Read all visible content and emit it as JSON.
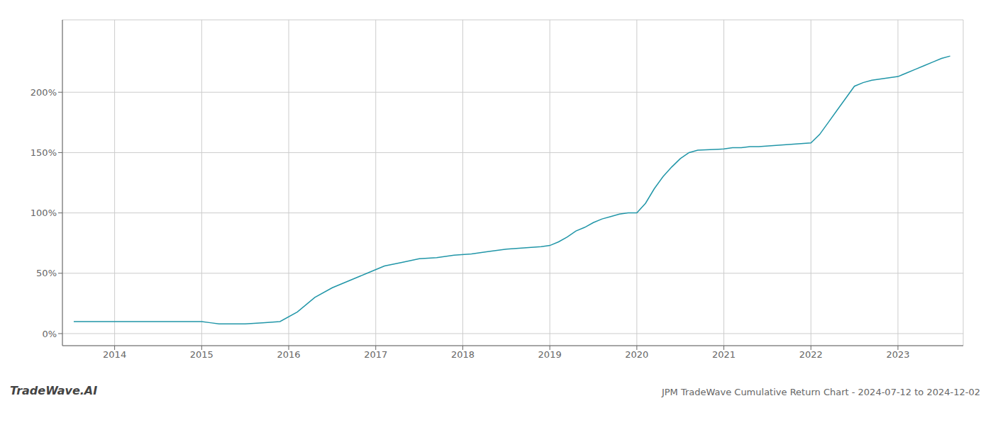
{
  "chart_data": {
    "type": "line",
    "title": "JPM TradeWave Cumulative Return Chart - 2024-07-12 to 2024-12-02",
    "annotations": [
      "TradeWave.AI"
    ],
    "color": "#2196a8",
    "grid": true,
    "x": [
      2013.53,
      2013.7,
      2013.9,
      2014.1,
      2014.3,
      2014.5,
      2014.7,
      2014.9,
      2015.0,
      2015.1,
      2015.2,
      2015.3,
      2015.5,
      2015.7,
      2015.9,
      2016.1,
      2016.3,
      2016.5,
      2016.7,
      2016.9,
      2017.1,
      2017.3,
      2017.5,
      2017.7,
      2017.9,
      2018.1,
      2018.3,
      2018.5,
      2018.7,
      2018.9,
      2019.0,
      2019.1,
      2019.2,
      2019.3,
      2019.4,
      2019.5,
      2019.6,
      2019.7,
      2019.8,
      2019.9,
      2020.0,
      2020.1,
      2020.2,
      2020.3,
      2020.4,
      2020.5,
      2020.6,
      2020.7,
      2021.0,
      2021.1,
      2021.2,
      2021.3,
      2021.4,
      2021.6,
      2021.8,
      2022.0,
      2022.1,
      2022.2,
      2022.3,
      2022.4,
      2022.5,
      2022.6,
      2022.7,
      2022.8,
      2022.9,
      2023.0,
      2023.1,
      2023.2,
      2023.3,
      2023.4,
      2023.5,
      2023.6
    ],
    "values": [
      10,
      10,
      10,
      10,
      10,
      10,
      10,
      10,
      10,
      9,
      8,
      8,
      8,
      9,
      10,
      18,
      30,
      38,
      44,
      50,
      56,
      59,
      62,
      63,
      65,
      66,
      68,
      70,
      71,
      72,
      73,
      76,
      80,
      85,
      88,
      92,
      95,
      97,
      99,
      100,
      100,
      108,
      120,
      130,
      138,
      145,
      150,
      152,
      153,
      154,
      154,
      155,
      155,
      156,
      157,
      158,
      165,
      175,
      185,
      195,
      205,
      208,
      210,
      211,
      212,
      213,
      216,
      219,
      222,
      225,
      228,
      230
    ],
    "xlim": [
      2013.4,
      2023.75
    ],
    "xticks": [
      2014,
      2015,
      2016,
      2017,
      2018,
      2019,
      2020,
      2021,
      2022,
      2023
    ],
    "ylim": [
      -10,
      260
    ],
    "yticks": [
      {
        "value": 0,
        "label": "0%"
      },
      {
        "value": 50,
        "label": "50%"
      },
      {
        "value": 100,
        "label": "100%"
      },
      {
        "value": 150,
        "label": "150%"
      },
      {
        "value": 200,
        "label": "200%"
      }
    ]
  }
}
